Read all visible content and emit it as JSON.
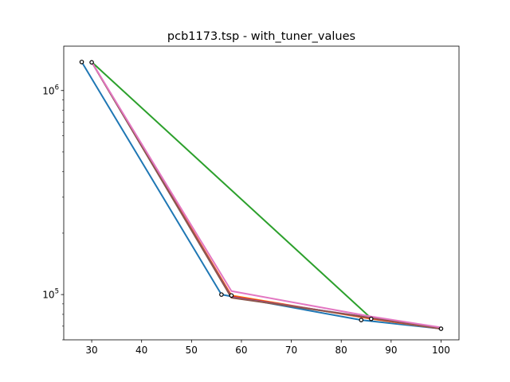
{
  "chart_data": {
    "type": "line",
    "title": "pcb1173.tsp - with_tuner_values",
    "xlabel": "",
    "ylabel": "",
    "xlim": [
      24.4,
      103.6
    ],
    "ylim": [
      60000,
      1650000
    ],
    "yscale": "log",
    "grid": false,
    "legend": "none",
    "x_ticks": [
      30,
      40,
      50,
      60,
      70,
      80,
      90,
      100
    ],
    "x_tick_labels": [
      "30",
      "40",
      "50",
      "60",
      "70",
      "80",
      "90",
      "100"
    ],
    "y_ticks": [
      {
        "value": 100000,
        "base": "10",
        "exp": "5"
      },
      {
        "value": 1000000,
        "base": "10",
        "exp": "6"
      }
    ],
    "series": [
      {
        "color": "#1f77b4",
        "x": [
          28,
          56,
          84,
          100
        ],
        "y": [
          1380000,
          100000,
          75000,
          68000
        ]
      },
      {
        "color": "#ff7f0e",
        "x": [
          30,
          58,
          86,
          100
        ],
        "y": [
          1380000,
          99000,
          76000,
          68000
        ]
      },
      {
        "color": "#2ca02c",
        "x": [
          30,
          86,
          100
        ],
        "y": [
          1380000,
          76500,
          68500
        ]
      },
      {
        "color": "#d62728",
        "x": [
          30,
          58,
          86,
          100
        ],
        "y": [
          1380000,
          98000,
          76500,
          68000
        ]
      },
      {
        "color": "#9467bd",
        "x": [
          30,
          58,
          86,
          100
        ],
        "y": [
          1380000,
          97000,
          77000,
          68000
        ]
      },
      {
        "color": "#8c564b",
        "x": [
          30,
          58,
          86,
          100
        ],
        "y": [
          1380000,
          96500,
          77000,
          68000
        ]
      },
      {
        "color": "#e377c2",
        "x": [
          30,
          58,
          86,
          100
        ],
        "y": [
          1380000,
          104000,
          78000,
          69000
        ]
      }
    ],
    "markers": [
      {
        "x": 28,
        "y": 1380000
      },
      {
        "x": 30,
        "y": 1375000
      },
      {
        "x": 56,
        "y": 100000
      },
      {
        "x": 58,
        "y": 99000
      },
      {
        "x": 84,
        "y": 75000
      },
      {
        "x": 86,
        "y": 76000
      },
      {
        "x": 100,
        "y": 68000
      }
    ],
    "axis_color": "#000000",
    "marker_edge_color": "#000000",
    "marker_face_color": "#ffffff"
  }
}
